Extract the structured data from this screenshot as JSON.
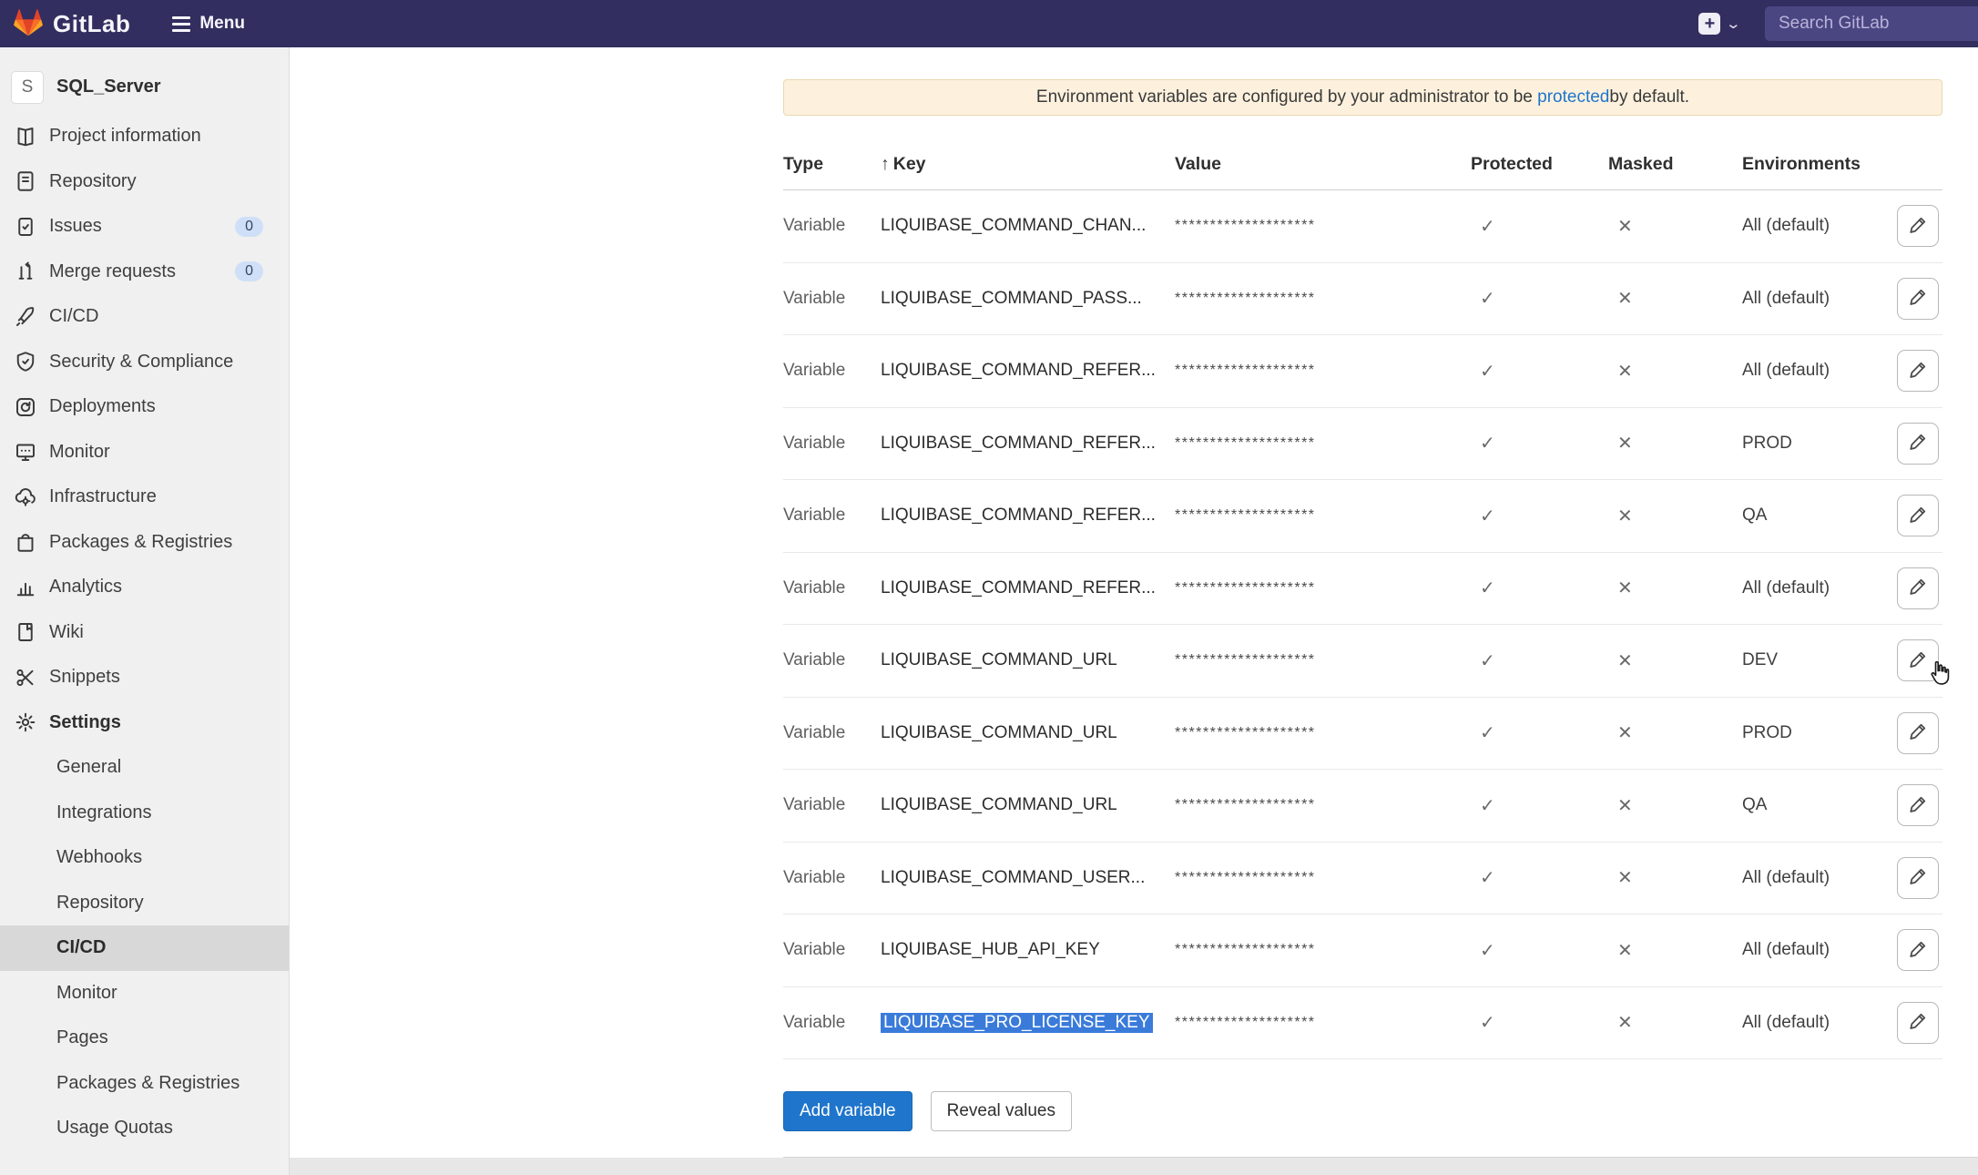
{
  "topbar": {
    "brand": "GitLab",
    "menu_label": "Menu",
    "search_placeholder": "Search GitLab",
    "plus_glyph": "+",
    "colors": {
      "bar": "#322e5f",
      "search_bg": "#4a4682"
    }
  },
  "sidebar": {
    "project": {
      "avatar_letter": "S",
      "name": "SQL_Server"
    },
    "items": [
      {
        "label": "Project information",
        "icon": "project-information-icon"
      },
      {
        "label": "Repository",
        "icon": "repository-icon"
      },
      {
        "label": "Issues",
        "icon": "issues-icon",
        "badge": "0"
      },
      {
        "label": "Merge requests",
        "icon": "merge-request-icon",
        "badge": "0"
      },
      {
        "label": "CI/CD",
        "icon": "rocket-icon"
      },
      {
        "label": "Security & Compliance",
        "icon": "shield-icon"
      },
      {
        "label": "Deployments",
        "icon": "deployments-icon"
      },
      {
        "label": "Monitor",
        "icon": "monitor-icon"
      },
      {
        "label": "Infrastructure",
        "icon": "infrastructure-icon"
      },
      {
        "label": "Packages & Registries",
        "icon": "package-icon"
      },
      {
        "label": "Analytics",
        "icon": "analytics-icon"
      },
      {
        "label": "Wiki",
        "icon": "wiki-icon"
      },
      {
        "label": "Snippets",
        "icon": "snippets-icon"
      },
      {
        "label": "Settings",
        "icon": "gear-icon",
        "bold": true
      }
    ],
    "settings_subitems": [
      {
        "label": "General"
      },
      {
        "label": "Integrations"
      },
      {
        "label": "Webhooks"
      },
      {
        "label": "Repository"
      },
      {
        "label": "CI/CD",
        "active": true
      },
      {
        "label": "Monitor"
      },
      {
        "label": "Pages"
      },
      {
        "label": "Packages & Registries"
      },
      {
        "label": "Usage Quotas"
      }
    ]
  },
  "main": {
    "banner": {
      "text_before": "Environment variables are configured by your administrator to be ",
      "link": "protected",
      "text_after": " by default."
    },
    "table": {
      "headers": {
        "type": "Type",
        "sort_arrow": "↑",
        "key": "Key",
        "value": "Value",
        "protected": "Protected",
        "masked": "Masked",
        "environments": "Environments"
      },
      "masked_value": "********************",
      "protected_mark": "✓",
      "masked_mark": "✕",
      "rows": [
        {
          "type": "Variable",
          "key": "LIQUIBASE_COMMAND_CHAN...",
          "environments": "All (default)"
        },
        {
          "type": "Variable",
          "key": "LIQUIBASE_COMMAND_PASS...",
          "environments": "All (default)"
        },
        {
          "type": "Variable",
          "key": "LIQUIBASE_COMMAND_REFER...",
          "environments": "All (default)"
        },
        {
          "type": "Variable",
          "key": "LIQUIBASE_COMMAND_REFER...",
          "environments": "PROD"
        },
        {
          "type": "Variable",
          "key": "LIQUIBASE_COMMAND_REFER...",
          "environments": "QA"
        },
        {
          "type": "Variable",
          "key": "LIQUIBASE_COMMAND_REFER...",
          "environments": "All (default)"
        },
        {
          "type": "Variable",
          "key": "LIQUIBASE_COMMAND_URL",
          "environments": "DEV"
        },
        {
          "type": "Variable",
          "key": "LIQUIBASE_COMMAND_URL",
          "environments": "PROD"
        },
        {
          "type": "Variable",
          "key": "LIQUIBASE_COMMAND_URL",
          "environments": "QA"
        },
        {
          "type": "Variable",
          "key": "LIQUIBASE_COMMAND_USER...",
          "environments": "All (default)"
        },
        {
          "type": "Variable",
          "key": "LIQUIBASE_HUB_API_KEY",
          "environments": "All (default)"
        },
        {
          "type": "Variable",
          "key": "LIQUIBASE_PRO_LICENSE_KEY",
          "environments": "All (default)",
          "selected": true
        }
      ]
    },
    "buttons": {
      "add_variable": "Add variable",
      "reveal_values": "Reveal values"
    },
    "colors": {
      "add_btn": "#1f75cb",
      "link": "#1f75cb",
      "selection": "#3a7bda"
    }
  }
}
